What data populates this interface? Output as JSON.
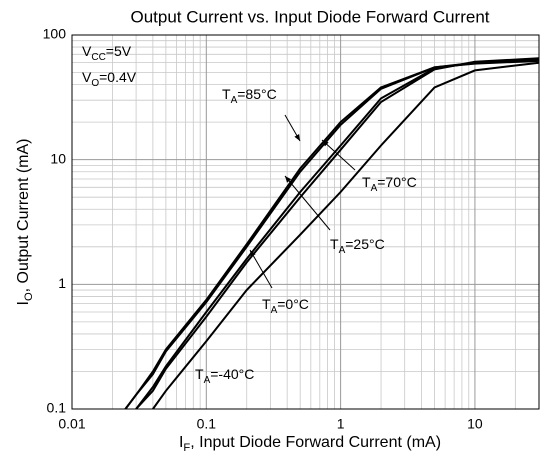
{
  "chart_data": {
    "type": "line",
    "title": "Output Current vs. Input Diode Forward Current",
    "x_label": {
      "main": "I",
      "sub": "F",
      "tail": ", Input Diode Forward Current (mA)"
    },
    "y_label": {
      "main": "I",
      "sub": "O",
      "tail": ", Output Current (mA)"
    },
    "x": [
      0.025,
      0.03,
      0.04,
      0.05,
      0.1,
      0.2,
      0.5,
      1,
      2,
      5,
      10,
      30
    ],
    "series": [
      {
        "name": "85",
        "color": "#000000",
        "values": [
          0.1,
          0.13,
          0.2,
          0.3,
          0.75,
          2.1,
          8.5,
          20,
          38,
          55,
          59,
          62
        ]
      },
      {
        "name": "70",
        "color": "#000000",
        "values": [
          0.1,
          0.13,
          0.19,
          0.29,
          0.72,
          2.0,
          8,
          19,
          37,
          55,
          60,
          63
        ]
      },
      {
        "name": "25",
        "color": "#000000",
        "values": [
          null,
          0.1,
          0.15,
          0.22,
          0.6,
          1.6,
          5.5,
          13,
          31,
          54,
          60,
          64
        ]
      },
      {
        "name": "0",
        "color": "#000000",
        "values": [
          null,
          0.1,
          0.14,
          0.21,
          0.55,
          1.5,
          5,
          12,
          29,
          53,
          61,
          65
        ]
      },
      {
        "name": "-40",
        "color": "#000000",
        "values": [
          null,
          null,
          0.1,
          0.14,
          0.35,
          0.9,
          2.5,
          5.5,
          13,
          38,
          52,
          60
        ]
      }
    ],
    "annotations": [
      {
        "main": "V",
        "sub": "CC",
        "tail": "=5V"
      },
      {
        "main": "V",
        "sub": "O",
        "tail": "=0.4V"
      },
      {
        "main": "T",
        "sub": "A",
        "tail": "=85°C"
      },
      {
        "main": "T",
        "sub": "A",
        "tail": "=70°C"
      },
      {
        "main": "T",
        "sub": "A",
        "tail": "=25°C"
      },
      {
        "main": "T",
        "sub": "A",
        "tail": "=0°C"
      },
      {
        "main": "T",
        "sub": "A",
        "tail": "=-40°C"
      }
    ],
    "xlim": [
      0.01,
      30
    ],
    "ylim": [
      0.1,
      100
    ],
    "xticks": [
      0.01,
      0.1,
      1,
      10
    ],
    "yticks": [
      0.1,
      1,
      10,
      100
    ],
    "xscale": "log",
    "yscale": "log",
    "grid": true,
    "minor_grid": true
  }
}
